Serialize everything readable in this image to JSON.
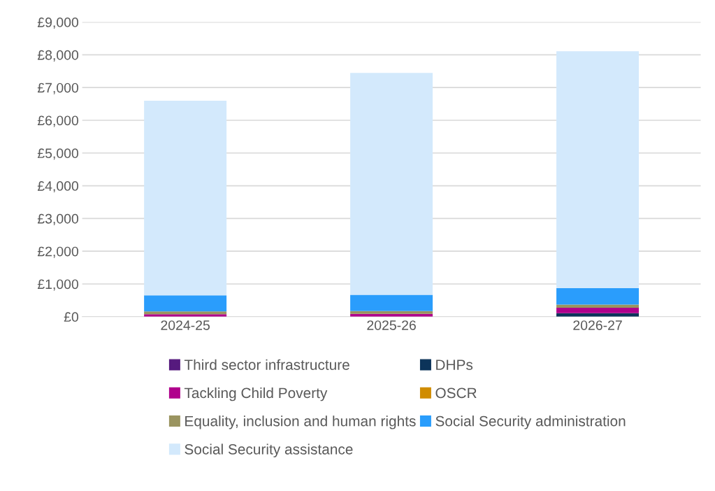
{
  "chart_data": {
    "type": "bar",
    "stacked": true,
    "categories": [
      "2024-25",
      "2025-26",
      "2026-27"
    ],
    "series": [
      {
        "name": "Third sector infrastructure",
        "color": "#561a7e",
        "values": [
          null,
          null,
          null
        ]
      },
      {
        "name": "DHPs",
        "color": "#0c345a",
        "values": [
          0,
          0,
          110
        ]
      },
      {
        "name": "Tackling Child Poverty",
        "color": "#b0008c",
        "values": [
          75,
          85,
          165
        ]
      },
      {
        "name": "OSCR",
        "color": "#d08c00",
        "values": [
          null,
          null,
          null
        ]
      },
      {
        "name": "Equality, inclusion and human rights",
        "color": "#9a9460",
        "values": [
          85,
          85,
          95
        ]
      },
      {
        "name": "Social Security administration",
        "color": "#2a9dfc",
        "values": [
          490,
          500,
          500
        ]
      },
      {
        "name": "Social Security assistance",
        "color": "#d3e9fc",
        "values": [
          5950,
          6780,
          7240
        ]
      }
    ],
    "ylim": [
      0,
      9000
    ],
    "yticks": [
      {
        "value": 0,
        "label": "£0"
      },
      {
        "value": 1000,
        "label": "£1,000"
      },
      {
        "value": 2000,
        "label": "£2,000"
      },
      {
        "value": 3000,
        "label": "£3,000"
      },
      {
        "value": 4000,
        "label": "£4,000"
      },
      {
        "value": 5000,
        "label": "£5,000"
      },
      {
        "value": 6000,
        "label": "£6,000"
      },
      {
        "value": 7000,
        "label": "£7,000"
      },
      {
        "value": 8000,
        "label": "£8,000"
      },
      {
        "value": 9000,
        "label": "£9,000"
      }
    ],
    "grid": "y",
    "legend": "bottom"
  }
}
